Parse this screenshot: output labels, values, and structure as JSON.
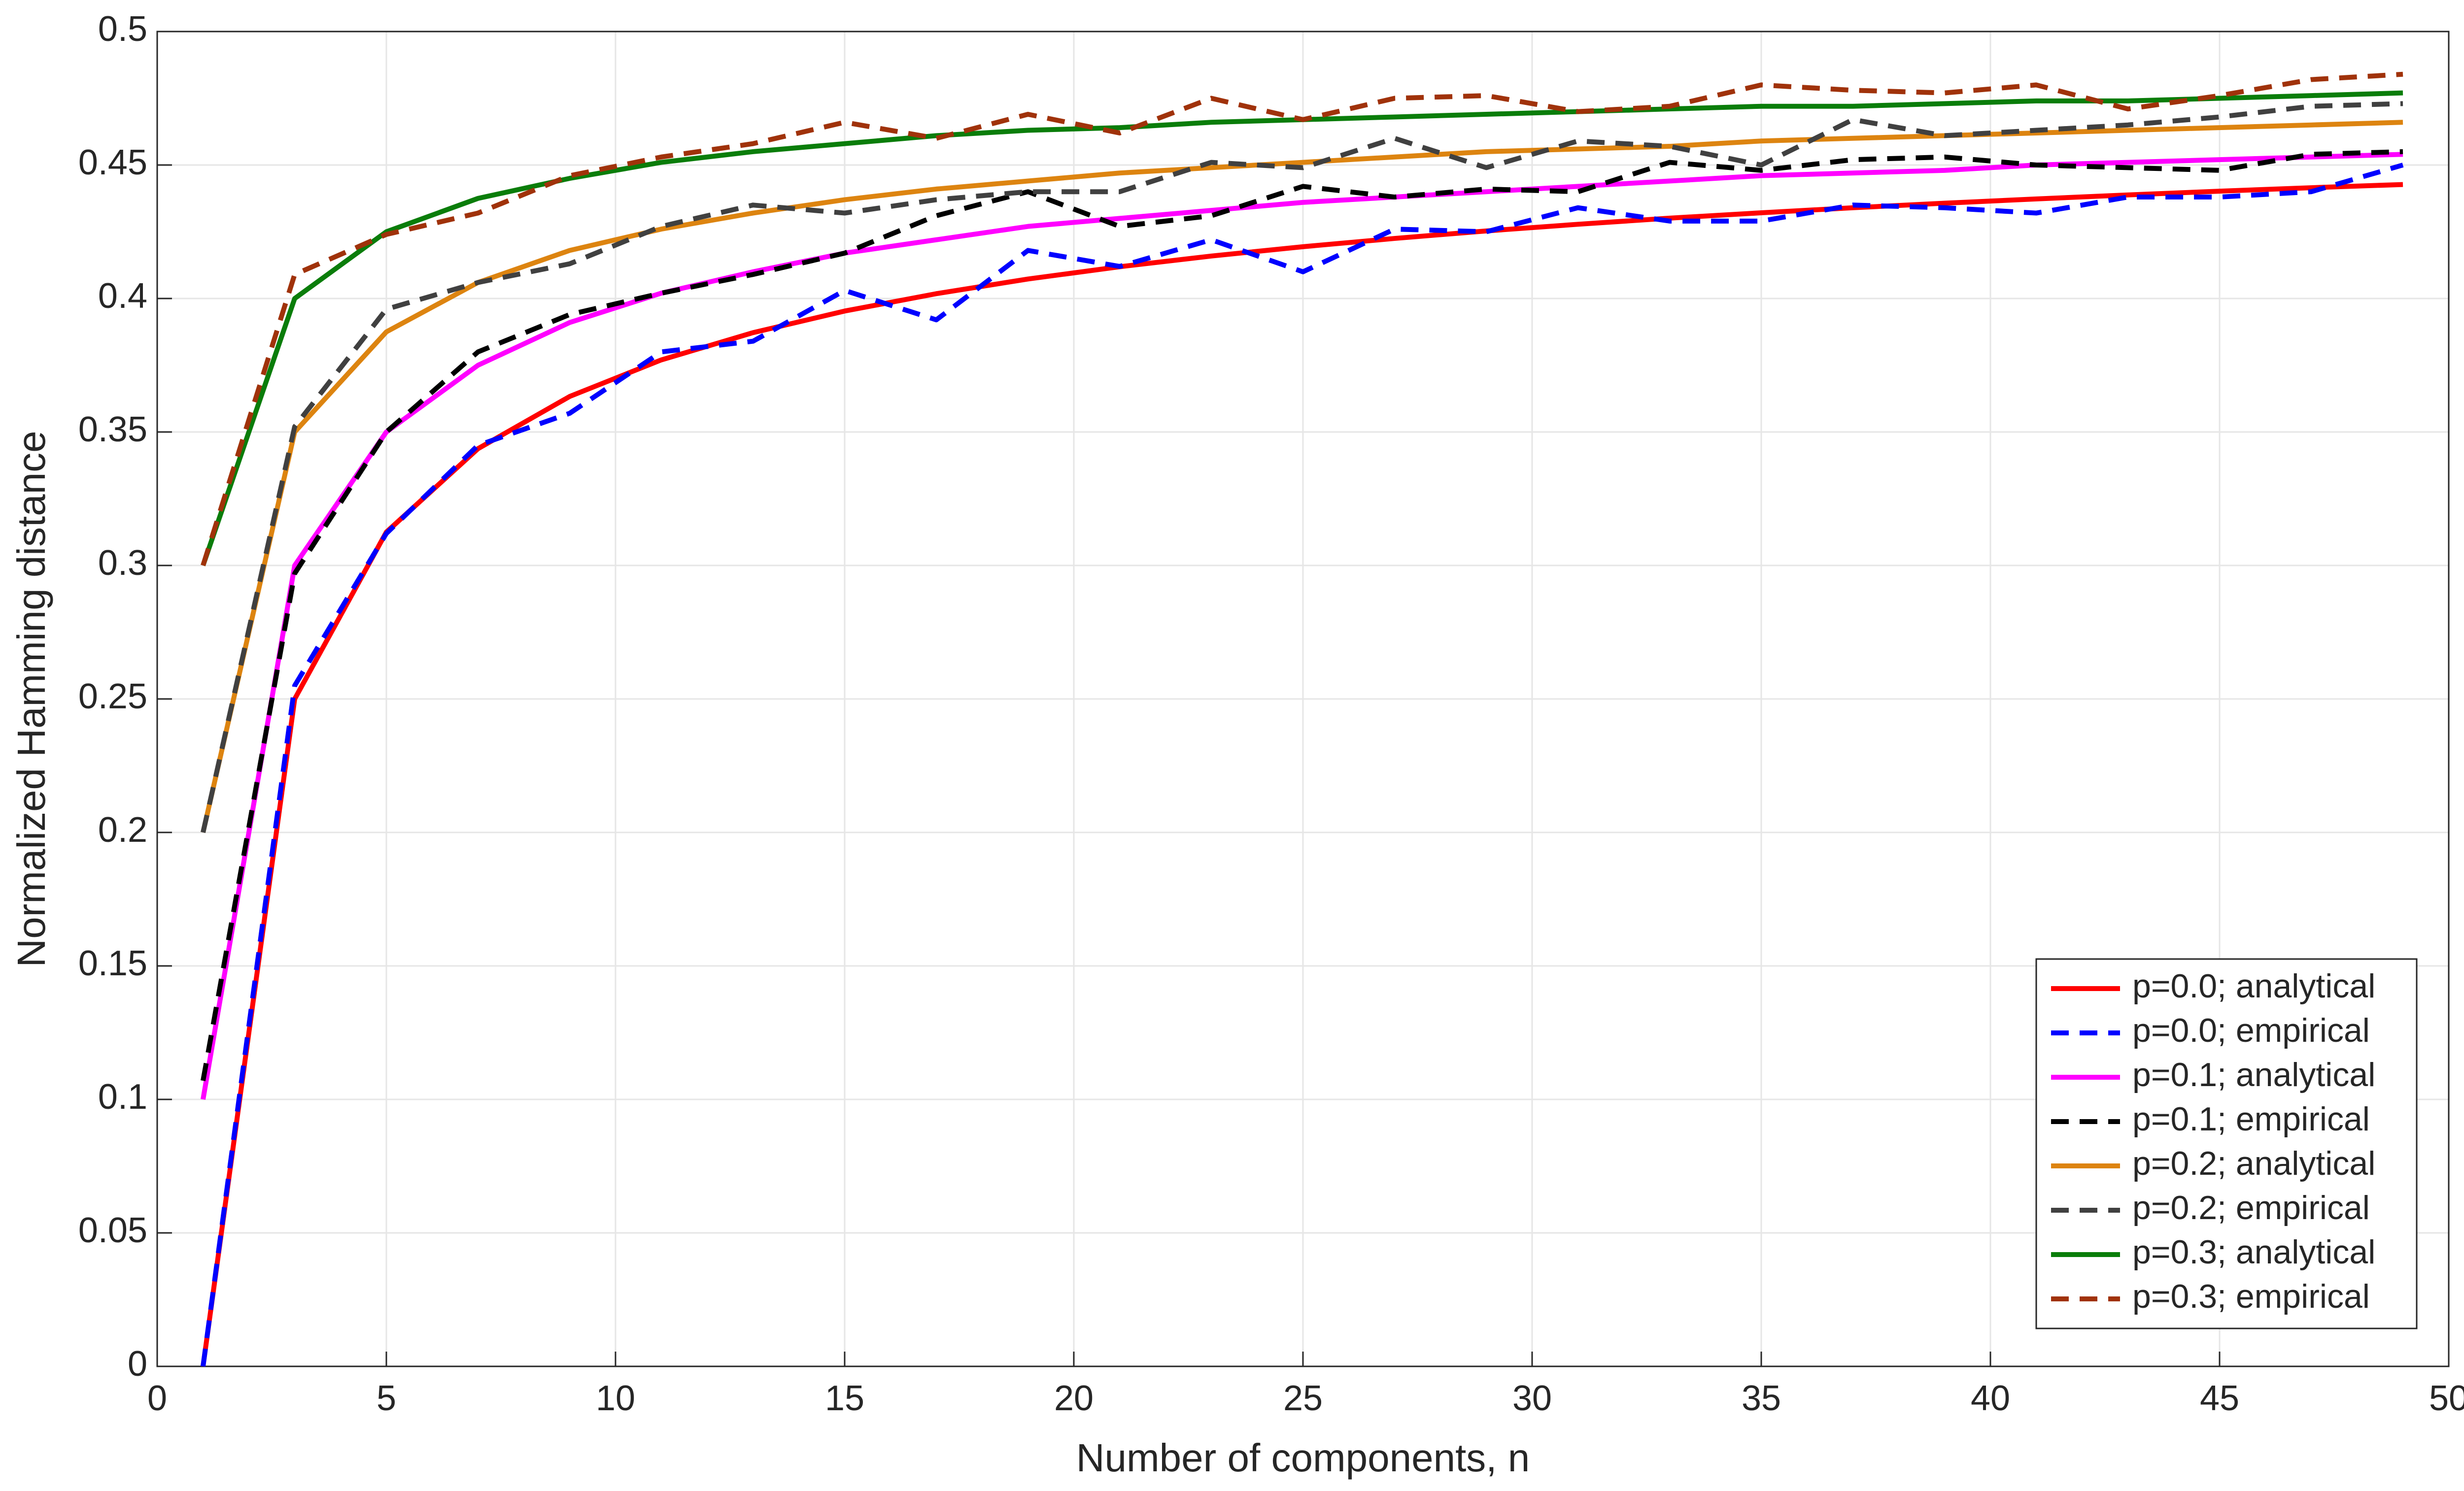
{
  "chart_data": {
    "type": "line",
    "xlabel": "Number of components,  n",
    "ylabel": "Normalized Hamming distance",
    "x": [
      1,
      3,
      5,
      7,
      9,
      11,
      13,
      15,
      17,
      19,
      21,
      23,
      25,
      27,
      29,
      31,
      33,
      35,
      37,
      39,
      41,
      43,
      45,
      47,
      49
    ],
    "series": [
      {
        "name": "p=0.0; analytical",
        "color": "#ff0000",
        "dash": false,
        "values": [
          0,
          0.25,
          0.3125,
          0.34375,
          0.3633,
          0.377,
          0.3872,
          0.3953,
          0.4018,
          0.4073,
          0.4119,
          0.4159,
          0.4194,
          0.4225,
          0.4253,
          0.4278,
          0.4301,
          0.4321,
          0.434,
          0.4357,
          0.4373,
          0.4388,
          0.4402,
          0.4415,
          0.4427
        ]
      },
      {
        "name": "p=0.0; empirical",
        "color": "#0000ff",
        "dash": true,
        "values": [
          0,
          0.255,
          0.312,
          0.345,
          0.357,
          0.38,
          0.384,
          0.403,
          0.392,
          0.418,
          0.412,
          0.422,
          0.41,
          0.426,
          0.425,
          0.434,
          0.429,
          0.429,
          0.435,
          0.434,
          0.432,
          0.438,
          0.438,
          0.44,
          0.45
        ]
      },
      {
        "name": "p=0.1; analytical",
        "color": "#ff00ff",
        "dash": false,
        "values": [
          0.1,
          0.3,
          0.35,
          0.375,
          0.391,
          0.402,
          0.41,
          0.417,
          0.422,
          0.427,
          0.43,
          0.433,
          0.436,
          0.438,
          0.44,
          0.442,
          0.444,
          0.446,
          0.447,
          0.448,
          0.45,
          0.451,
          0.452,
          0.453,
          0.454
        ]
      },
      {
        "name": "p=0.1; empirical",
        "color": "#000000",
        "dash": true,
        "values": [
          0.107,
          0.297,
          0.35,
          0.38,
          0.394,
          0.402,
          0.409,
          0.417,
          0.431,
          0.44,
          0.427,
          0.431,
          0.442,
          0.438,
          0.441,
          0.44,
          0.451,
          0.448,
          0.452,
          0.453,
          0.45,
          0.449,
          0.448,
          0.454,
          0.455
        ]
      },
      {
        "name": "p=0.2; analytical",
        "color": "#dd8410",
        "dash": false,
        "values": [
          0.2,
          0.35,
          0.3875,
          0.406,
          0.418,
          0.426,
          0.432,
          0.437,
          0.441,
          0.444,
          0.447,
          0.449,
          0.451,
          0.453,
          0.455,
          0.456,
          0.457,
          0.459,
          0.46,
          0.461,
          0.462,
          0.463,
          0.464,
          0.465,
          0.466
        ]
      },
      {
        "name": "p=0.2; empirical",
        "color": "#404040",
        "dash": true,
        "values": [
          0.2,
          0.352,
          0.396,
          0.406,
          0.413,
          0.427,
          0.435,
          0.432,
          0.437,
          0.44,
          0.44,
          0.451,
          0.449,
          0.46,
          0.449,
          0.459,
          0.457,
          0.45,
          0.467,
          0.461,
          0.463,
          0.465,
          0.468,
          0.472,
          0.473
        ]
      },
      {
        "name": "p=0.3; analytical",
        "color": "#0a7d0a",
        "dash": false,
        "values": [
          0.3,
          0.4,
          0.425,
          0.4375,
          0.445,
          0.451,
          0.455,
          0.458,
          0.461,
          0.463,
          0.464,
          0.466,
          0.467,
          0.468,
          0.469,
          0.47,
          0.471,
          0.472,
          0.472,
          0.473,
          0.474,
          0.474,
          0.475,
          0.476,
          0.477
        ]
      },
      {
        "name": "p=0.3; empirical",
        "color": "#a0320a",
        "dash": true,
        "values": [
          0.3,
          0.409,
          0.424,
          0.432,
          0.446,
          0.453,
          0.458,
          0.466,
          0.46,
          0.469,
          0.462,
          0.475,
          0.467,
          0.475,
          0.476,
          0.47,
          0.472,
          0.48,
          0.478,
          0.477,
          0.48,
          0.471,
          0.476,
          0.482,
          0.484
        ]
      }
    ],
    "xlim": [
      0,
      50
    ],
    "xticks": [
      0,
      5,
      10,
      15,
      20,
      25,
      30,
      35,
      40,
      45,
      50
    ],
    "ylim": [
      0,
      0.5
    ],
    "yticks": [
      0,
      0.05,
      0.1,
      0.15,
      0.2,
      0.25,
      0.3,
      0.35,
      0.4,
      0.45,
      0.5
    ],
    "grid": true,
    "legend": "lower right"
  }
}
